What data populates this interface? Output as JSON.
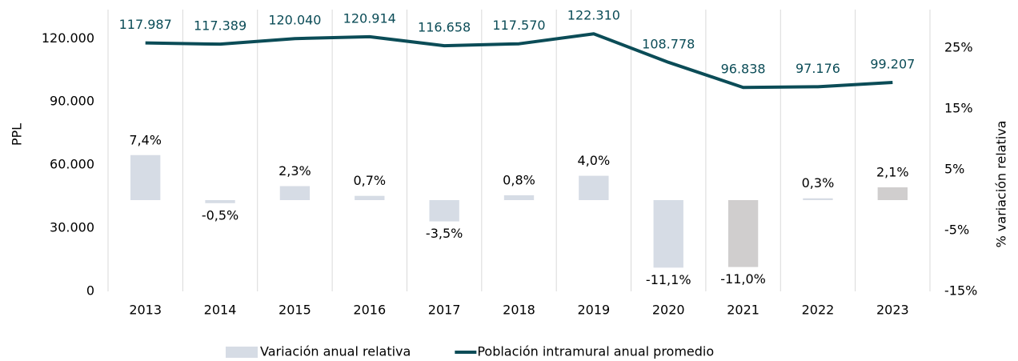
{
  "chart_data": {
    "type": "combo",
    "categories": [
      "2013",
      "2014",
      "2015",
      "2016",
      "2017",
      "2018",
      "2019",
      "2020",
      "2021",
      "2022",
      "2023"
    ],
    "ylabel": "PPL",
    "y2label": "% variación relativa",
    "ylim": [
      0,
      130000
    ],
    "yticks": [
      0,
      {
        "value": 30000,
        "label": "30.000"
      },
      {
        "value": 60000,
        "label": "60.000"
      },
      {
        "value": 90000,
        "label": "90.000"
      },
      {
        "value": 120000,
        "label": "120.000"
      }
    ],
    "y2lim": [
      -15,
      30
    ],
    "y2ticks": [
      {
        "value": -15,
        "label": "-15%"
      },
      {
        "value": -5,
        "label": "-5%"
      },
      {
        "value": 5,
        "label": "5%"
      },
      {
        "value": 15,
        "label": "15%"
      },
      {
        "value": 25,
        "label": "25%"
      }
    ],
    "grid": true,
    "legend": "bottom",
    "series": [
      {
        "name": "Variación anual relativa",
        "type": "bar",
        "axis": "y2",
        "color": "#d6dce5",
        "colors": [
          "#d6dce5",
          "#d6dce5",
          "#d6dce5",
          "#d6dce5",
          "#d6dce5",
          "#d6dce5",
          "#d6dce5",
          "#d6dce5",
          "#d0cece",
          "#d6dce5",
          "#d0cece"
        ],
        "values": [
          7.4,
          -0.5,
          2.3,
          0.7,
          -3.5,
          0.8,
          4.0,
          -11.1,
          -11.0,
          0.3,
          2.1
        ],
        "value_labels": [
          "7,4%",
          "-0,5%",
          "2,3%",
          "0,7%",
          "-3,5%",
          "0,8%",
          "4,0%",
          "-11,1%",
          "-11,0%",
          "0,3%",
          "2,1%"
        ]
      },
      {
        "name": "Población intramural anual promedio",
        "type": "line",
        "axis": "y",
        "color": "#0b4c57",
        "values": [
          117987,
          117389,
          120040,
          120914,
          116658,
          117570,
          122310,
          108778,
          96838,
          97176,
          99207
        ],
        "value_labels": [
          "117.987",
          "117.389",
          "120.040",
          "120.914",
          "116.658",
          "117.570",
          "122.310",
          "108.778",
          "96.838",
          "97.176",
          "99.207"
        ]
      }
    ]
  }
}
